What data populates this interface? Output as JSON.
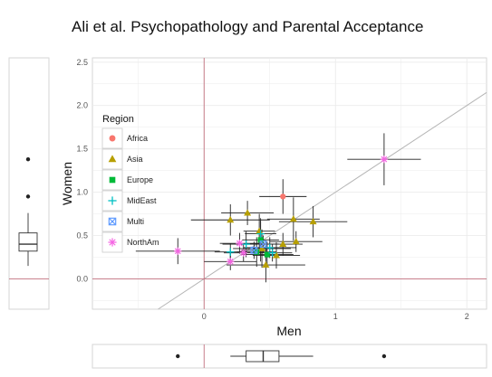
{
  "chart_data": {
    "type": "scatter",
    "title": "Ali et al. Psychopathology and Parental Acceptance",
    "xlabel": "Men",
    "ylabel": "Women",
    "xlim": [
      -0.85,
      2.15
    ],
    "ylim": [
      -0.35,
      2.55
    ],
    "x_ticks": [
      "0",
      "1",
      "2"
    ],
    "y_ticks": [
      "0.0",
      "0.5",
      "1.0",
      "1.5",
      "2.0",
      "2.5"
    ],
    "reference_lines": {
      "diagonal": "y = x",
      "vline": 0,
      "hline": 0
    },
    "legend": {
      "title": "Region",
      "placement": "top-left",
      "entries": [
        {
          "name": "Africa",
          "color": "#F8766D",
          "shape": "circle"
        },
        {
          "name": "Asia",
          "color": "#B79F00",
          "shape": "triangle"
        },
        {
          "name": "Europe",
          "color": "#00BA38",
          "shape": "square"
        },
        {
          "name": "MidEast",
          "color": "#00BFC4",
          "shape": "plus"
        },
        {
          "name": "Multi",
          "color": "#619CFF",
          "shape": "boxx"
        },
        {
          "name": "NorthAm",
          "color": "#F564E3",
          "shape": "asterisk"
        }
      ]
    },
    "points": [
      {
        "region": "Africa",
        "x": 0.6,
        "y": 0.95,
        "xerr": 0.18,
        "yerr": 0.2
      },
      {
        "region": "Asia",
        "x": 0.2,
        "y": 0.68,
        "xerr": 0.3,
        "yerr": 0.18
      },
      {
        "region": "Asia",
        "x": 0.33,
        "y": 0.76,
        "xerr": 0.2,
        "yerr": 0.14
      },
      {
        "region": "Asia",
        "x": 0.68,
        "y": 0.69,
        "xerr": 0.2,
        "yerr": 0.25
      },
      {
        "region": "Asia",
        "x": 0.83,
        "y": 0.66,
        "xerr": 0.26,
        "yerr": 0.18
      },
      {
        "region": "Asia",
        "x": 0.42,
        "y": 0.55,
        "xerr": 0.12,
        "yerr": 0.2
      },
      {
        "region": "Asia",
        "x": 0.7,
        "y": 0.43,
        "xerr": 0.2,
        "yerr": 0.12
      },
      {
        "region": "Asia",
        "x": 0.6,
        "y": 0.4,
        "xerr": 0.15,
        "yerr": 0.13
      },
      {
        "region": "Asia",
        "x": 0.55,
        "y": 0.27,
        "xerr": 0.18,
        "yerr": 0.15
      },
      {
        "region": "Asia",
        "x": 0.44,
        "y": 0.35,
        "xerr": 0.22,
        "yerr": 0.22
      },
      {
        "region": "Asia",
        "x": 0.47,
        "y": 0.16,
        "xerr": 0.3,
        "yerr": 0.2
      },
      {
        "region": "Europe",
        "x": 0.43,
        "y": 0.45,
        "xerr": 0.14,
        "yerr": 0.25
      },
      {
        "region": "Europe",
        "x": 0.4,
        "y": 0.31,
        "xerr": 0.15,
        "yerr": 0.17
      },
      {
        "region": "Europe",
        "x": 0.48,
        "y": 0.28,
        "xerr": 0.2,
        "yerr": 0.15
      },
      {
        "region": "MidEast",
        "x": 0.43,
        "y": 0.52,
        "xerr": 0.12,
        "yerr": 0.15
      },
      {
        "region": "MidEast",
        "x": 0.32,
        "y": 0.4,
        "xerr": 0.18,
        "yerr": 0.15
      },
      {
        "region": "MidEast",
        "x": 0.5,
        "y": 0.36,
        "xerr": 0.2,
        "yerr": 0.12
      },
      {
        "region": "MidEast",
        "x": 0.2,
        "y": 0.31,
        "xerr": 0.12,
        "yerr": 0.1
      },
      {
        "region": "MidEast",
        "x": 0.52,
        "y": 0.3,
        "xerr": 0.15,
        "yerr": 0.1
      },
      {
        "region": "Multi",
        "x": 0.45,
        "y": 0.4,
        "xerr": 0.12,
        "yerr": 0.1
      },
      {
        "region": "Multi",
        "x": 0.38,
        "y": 0.33,
        "xerr": 0.1,
        "yerr": 0.1
      },
      {
        "region": "NorthAm",
        "x": 1.37,
        "y": 1.38,
        "xerr": 0.28,
        "yerr": 0.3
      },
      {
        "region": "NorthAm",
        "x": -0.2,
        "y": 0.32,
        "xerr": 0.32,
        "yerr": 0.15
      },
      {
        "region": "NorthAm",
        "x": 0.27,
        "y": 0.41,
        "xerr": 0.15,
        "yerr": 0.12
      },
      {
        "region": "NorthAm",
        "x": 0.3,
        "y": 0.3,
        "xerr": 0.15,
        "yerr": 0.1
      },
      {
        "region": "NorthAm",
        "x": 0.2,
        "y": 0.2,
        "xerr": 0.2,
        "yerr": 0.1
      }
    ],
    "marginal_boxplots": {
      "women": {
        "whisker_low": 0.15,
        "q1": 0.32,
        "median": 0.4,
        "q3": 0.53,
        "whisker_high": 0.76,
        "outliers": [
          0.95,
          1.38
        ]
      },
      "men": {
        "whisker_low": 0.2,
        "q1": 0.32,
        "median": 0.45,
        "q3": 0.57,
        "whisker_high": 0.83,
        "outliers": [
          -0.2,
          1.37
        ]
      }
    }
  }
}
